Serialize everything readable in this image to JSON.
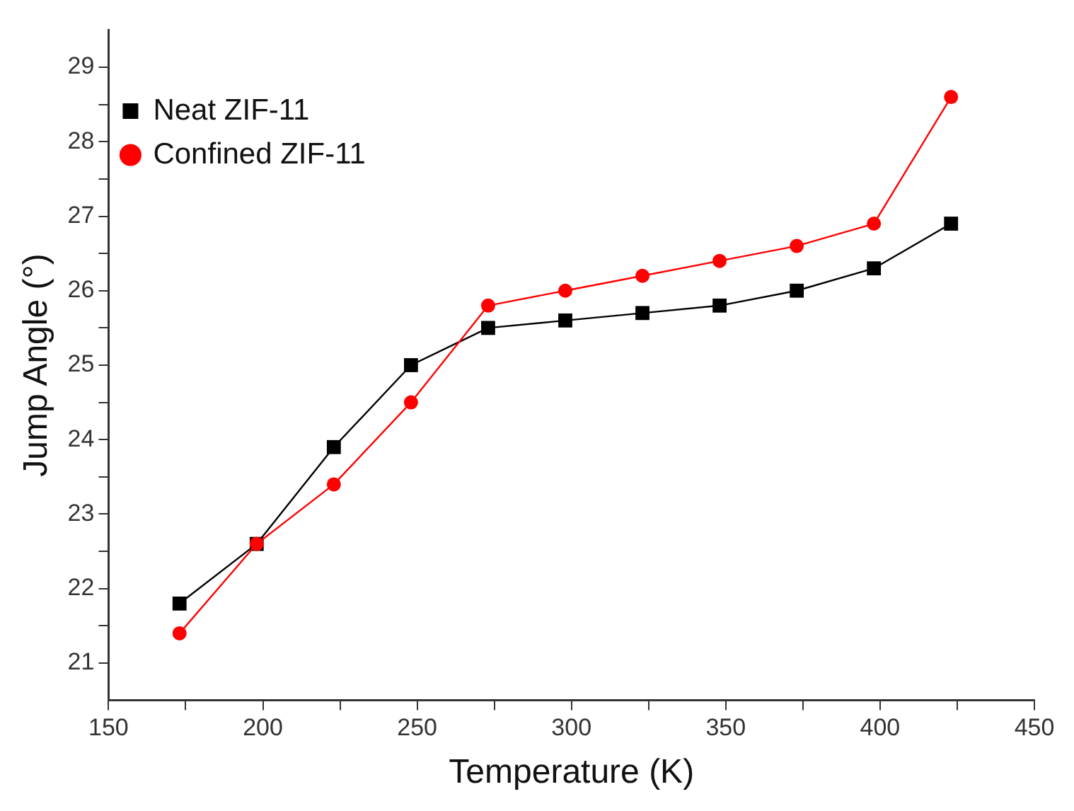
{
  "chart_data": {
    "type": "line",
    "xlabel": "Temperature (K)",
    "ylabel": "Jump Angle (°)",
    "xlim": [
      150,
      450
    ],
    "xticks": [
      150,
      {
        "value": 175,
        "label": null
      },
      200,
      {
        "value": 225,
        "label": null
      },
      250,
      {
        "value": 275,
        "label": null
      },
      300,
      {
        "value": 325,
        "label": null
      },
      350,
      {
        "value": 375,
        "label": null
      },
      400,
      {
        "value": 425,
        "label": null
      },
      450
    ],
    "ylim": [
      20.5,
      29.5
    ],
    "yticks": [
      21,
      {
        "value": 21.5,
        "label": null
      },
      22,
      {
        "value": 22.5,
        "label": null
      },
      23,
      {
        "value": 23.5,
        "label": null
      },
      24,
      {
        "value": 24.5,
        "label": null
      },
      25,
      {
        "value": 25.5,
        "label": null
      },
      26,
      {
        "value": 26.5,
        "label": null
      },
      27,
      {
        "value": 27.5,
        "label": null
      },
      28,
      {
        "value": 28.5,
        "label": null
      },
      29
    ],
    "x": [
      173,
      198,
      223,
      248,
      273,
      298,
      323,
      348,
      373,
      398,
      423
    ],
    "grid": false,
    "legend": "top left",
    "line_style": "solid",
    "series": [
      {
        "name": "Neat ZIF-11",
        "color": "#000000",
        "marker": "square",
        "values": [
          21.8,
          22.6,
          23.9,
          25.0,
          25.5,
          25.6,
          25.7,
          25.8,
          26.0,
          26.3,
          26.9
        ]
      },
      {
        "name": "Confined ZIF-11",
        "color": "#ff0000",
        "marker": "circle",
        "values": [
          21.4,
          22.6,
          23.4,
          24.5,
          25.8,
          26.0,
          26.2,
          26.4,
          26.6,
          26.9,
          28.6
        ]
      }
    ]
  }
}
